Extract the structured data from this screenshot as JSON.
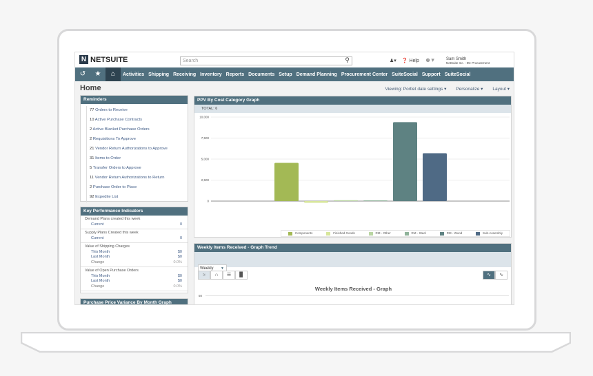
{
  "header": {
    "logo": "NETSUITE",
    "search_placeholder": "Search",
    "help": "Help",
    "user_name": "Sam Smith",
    "user_role": "NetSuite Inc. - 05: Procurement"
  },
  "nav": {
    "items": [
      "Activities",
      "Shipping",
      "Receiving",
      "Inventory",
      "Reports",
      "Documents",
      "Setup",
      "Demand Planning",
      "Procurement Center",
      "SuiteSocial",
      "Support",
      "SuiteSocial"
    ]
  },
  "page": {
    "title": "Home",
    "viewing": "Viewing: Portlet date settings",
    "personalize": "Personalize",
    "layout": "Layout"
  },
  "reminders": {
    "title": "Reminders",
    "items": [
      {
        "count": "77",
        "label": "Orders to Receive"
      },
      {
        "count": "10",
        "label": "Active Purchase Contracts"
      },
      {
        "count": "2",
        "label": "Active Blanket Purchase Orders"
      },
      {
        "count": "2",
        "label": "Requisitions To Approve"
      },
      {
        "count": "21",
        "label": "Vendor Return Authorizations to Approve"
      },
      {
        "count": "31",
        "label": "Items to Order"
      },
      {
        "count": "5",
        "label": "Transfer Orders to Approve"
      },
      {
        "count": "11",
        "label": "Vendor Return Authorizations to Return"
      },
      {
        "count": "2",
        "label": "Purchase Order to Place"
      },
      {
        "count": "92",
        "label": "Expedite List"
      }
    ]
  },
  "kpi": {
    "title": "Key Performance Indicators",
    "groups": [
      {
        "label": "Demand Plans created this week",
        "rows": [
          {
            "label": "Current",
            "value": "0"
          }
        ]
      },
      {
        "label": "Supply Plans Created this week",
        "rows": [
          {
            "label": "Current",
            "value": "0"
          }
        ]
      },
      {
        "label": "Value of Shipping Charges",
        "rows": [
          {
            "label": "This Month",
            "value": "$0"
          },
          {
            "label": "Last Month",
            "value": "$0"
          },
          {
            "label": "Change",
            "value": "0.0%"
          }
        ]
      },
      {
        "label": "Value of Open Purchase Orders",
        "rows": [
          {
            "label": "This Month",
            "value": "$0"
          },
          {
            "label": "Last Month",
            "value": "$0"
          },
          {
            "label": "Change",
            "value": "0.0%"
          }
        ]
      }
    ]
  },
  "ppv_month": {
    "title": "Purchase Price Variance By Month Graph"
  },
  "ppv_cost": {
    "title": "PPV By Cost Category Graph",
    "total": "TOTAL: 6"
  },
  "weekly": {
    "title": "Weekly Items Received - Graph Trend",
    "period": "Weekly",
    "graph_title": "Weekly Items Received - Graph",
    "y_tick": "50"
  },
  "chart_data": {
    "type": "bar",
    "title": "",
    "categories": [
      "Components",
      "Finished Goods",
      "RM - Other",
      "RM - Steel",
      "RM - Wood",
      "Sub-Assembly"
    ],
    "values": [
      4550,
      -200,
      100,
      80,
      9400,
      5700
    ],
    "colors": [
      "#a3b955",
      "#d7e69b",
      "#b9d5a2",
      "#8fb39a",
      "#5e8282",
      "#4f6a85"
    ],
    "ylim": [
      0,
      10000
    ],
    "yticks": [
      0,
      2500,
      5000,
      7500,
      10000
    ],
    "ytick_labels": [
      "0",
      "2,500",
      "5,000",
      "7,500",
      "10,000"
    ],
    "grid": true,
    "legend": "bottom"
  }
}
